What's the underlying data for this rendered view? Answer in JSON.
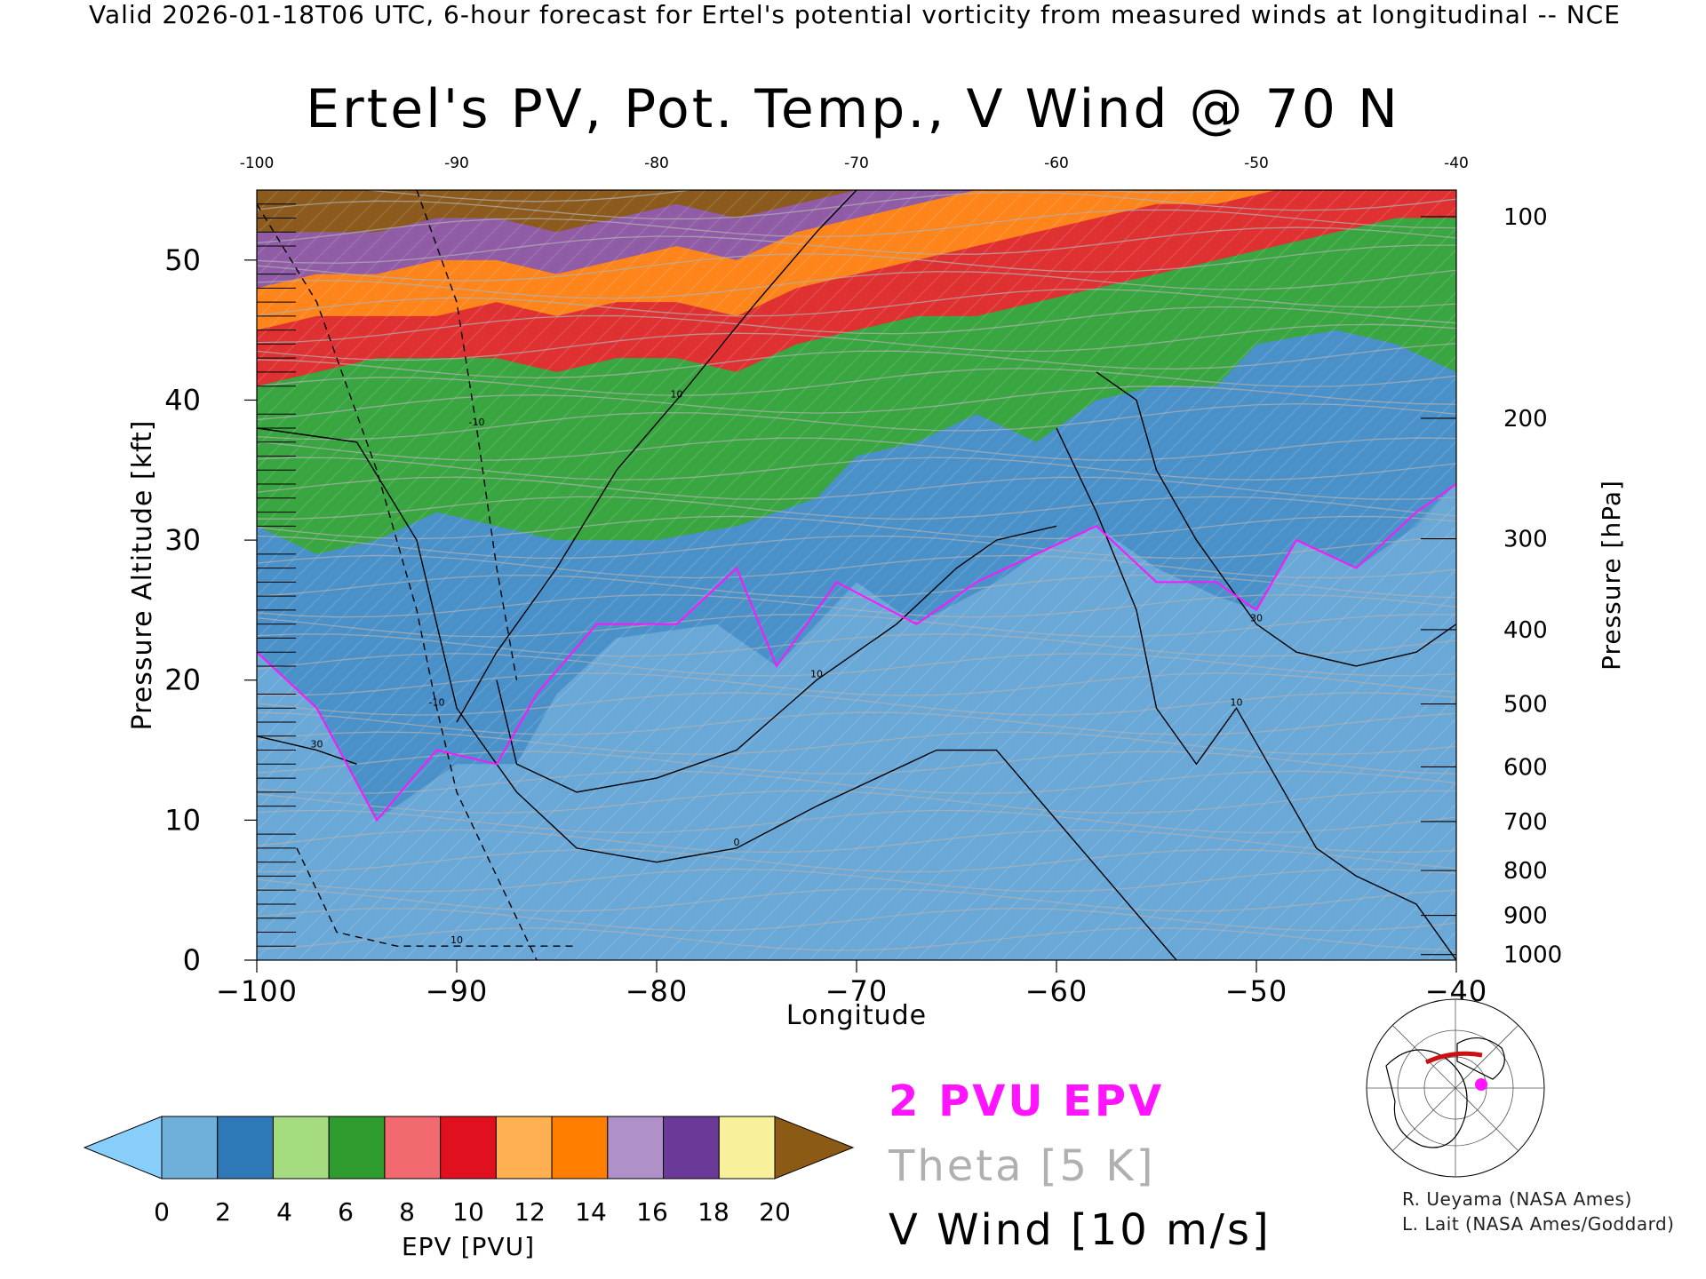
{
  "header": "Valid 2026-01-18T06 UTC, 6-hour forecast for Ertel's potential vorticity from measured winds at longitudinal -- NCE",
  "chart_data": {
    "type": "heatmap",
    "title": "Ertel's PV, Pot. Temp., V Wind @ 70 N",
    "xlabel": "Longitude",
    "ylabel": "Pressure Altitude [kft]",
    "y2label": "Pressure [hPa]",
    "xlim": [
      -100,
      -40
    ],
    "ylim": [
      0,
      55
    ],
    "x_ticks": [
      -100,
      -90,
      -80,
      -70,
      -60,
      -50,
      -40
    ],
    "x_tick_labels": [
      "−100",
      "−90",
      "−80",
      "−70",
      "−60",
      "−50",
      "−40"
    ],
    "top_x_tick_labels": [
      "-100",
      "-90",
      "-80",
      "-70",
      "-60",
      "-50",
      "-40"
    ],
    "y_ticks": [
      0,
      10,
      20,
      30,
      40,
      50
    ],
    "y_tick_labels": [
      "0",
      "10",
      "20",
      "30",
      "40",
      "50"
    ],
    "pressure_ticks": [
      {
        "label": "100",
        "kft": 53.1
      },
      {
        "label": "200",
        "kft": 38.7
      },
      {
        "label": "300",
        "kft": 30.1
      },
      {
        "label": "400",
        "kft": 23.6
      },
      {
        "label": "500",
        "kft": 18.3
      },
      {
        "label": "600",
        "kft": 13.8
      },
      {
        "label": "700",
        "kft": 9.9
      },
      {
        "label": "800",
        "kft": 6.4
      },
      {
        "label": "900",
        "kft": 3.2
      },
      {
        "label": "1000",
        "kft": 0.4
      }
    ],
    "colorbar": {
      "label": "EPV [PVU]",
      "ticks": [
        "0",
        "2",
        "4",
        "6",
        "8",
        "10",
        "12",
        "14",
        "16",
        "18",
        "20"
      ],
      "under_color": "#87cefa",
      "over_color": "#8b5a14",
      "colors": [
        "#6fb0da",
        "#2f78b8",
        "#a6dc80",
        "#2e9c2e",
        "#f26a70",
        "#e0101e",
        "#ffb050",
        "#ff7e00",
        "#b090c8",
        "#6a3a98",
        "#f8f09a"
      ]
    },
    "epv_bands": [
      {
        "name": "0-4 PVU",
        "color": "#4a8fc8",
        "boundary": [
          [
            -100,
            22
          ],
          [
            -97,
            18
          ],
          [
            -94,
            10
          ],
          [
            -90,
            14
          ],
          [
            -87,
            14
          ],
          [
            -85,
            19
          ],
          [
            -82,
            23
          ],
          [
            -77,
            24
          ],
          [
            -74,
            21
          ],
          [
            -70,
            27
          ],
          [
            -67,
            24
          ],
          [
            -63,
            27
          ],
          [
            -61,
            29
          ],
          [
            -58,
            31
          ],
          [
            -55,
            28
          ],
          [
            -52,
            26
          ],
          [
            -50,
            25
          ],
          [
            -48,
            30
          ],
          [
            -45,
            28
          ],
          [
            -42,
            31
          ],
          [
            -40,
            34
          ]
        ]
      },
      {
        "name": "4-8 PVU",
        "color": "#38a83a",
        "boundary": [
          [
            -100,
            31
          ],
          [
            -97,
            29
          ],
          [
            -94,
            30
          ],
          [
            -91,
            32
          ],
          [
            -88,
            31
          ],
          [
            -85,
            30
          ],
          [
            -80,
            30
          ],
          [
            -76,
            31
          ],
          [
            -72,
            33
          ],
          [
            -70,
            36
          ],
          [
            -67,
            37
          ],
          [
            -64,
            39
          ],
          [
            -61,
            37
          ],
          [
            -58,
            40
          ],
          [
            -55,
            41
          ],
          [
            -52,
            41
          ],
          [
            -50,
            44
          ],
          [
            -46,
            45
          ],
          [
            -43,
            44
          ],
          [
            -40,
            42
          ]
        ]
      },
      {
        "name": "8-12 PVU",
        "color": "#e82a32",
        "boundary": [
          [
            -100,
            41
          ],
          [
            -97,
            42
          ],
          [
            -94,
            43
          ],
          [
            -91,
            43
          ],
          [
            -88,
            43
          ],
          [
            -85,
            42
          ],
          [
            -82,
            43
          ],
          [
            -79,
            43
          ],
          [
            -76,
            42
          ],
          [
            -73,
            44
          ],
          [
            -70,
            45
          ],
          [
            -67,
            46
          ],
          [
            -64,
            46
          ],
          [
            -61,
            47
          ],
          [
            -58,
            48
          ],
          [
            -55,
            49
          ],
          [
            -52,
            50
          ],
          [
            -49,
            51
          ],
          [
            -46,
            52
          ],
          [
            -43,
            53
          ],
          [
            -40,
            53
          ]
        ]
      },
      {
        "name": "12-14 PVU",
        "color": "#ff8a1a",
        "boundary": [
          [
            -100,
            45
          ],
          [
            -97,
            46
          ],
          [
            -94,
            46
          ],
          [
            -91,
            46
          ],
          [
            -88,
            47
          ],
          [
            -85,
            46
          ],
          [
            -82,
            47
          ],
          [
            -79,
            47
          ],
          [
            -76,
            46
          ],
          [
            -73,
            48
          ],
          [
            -70,
            49
          ],
          [
            -67,
            50
          ],
          [
            -64,
            51
          ],
          [
            -61,
            52
          ],
          [
            -58,
            53
          ],
          [
            -55,
            54
          ],
          [
            -52,
            54
          ],
          [
            -49,
            55
          ],
          [
            -46,
            55
          ],
          [
            -43,
            55
          ],
          [
            -40,
            55
          ]
        ]
      },
      {
        "name": "14-18 PVU",
        "color": "#8a5aae",
        "boundary": [
          [
            -100,
            48
          ],
          [
            -97,
            49
          ],
          [
            -94,
            49
          ],
          [
            -91,
            50
          ],
          [
            -88,
            50
          ],
          [
            -85,
            49
          ],
          [
            -82,
            50
          ],
          [
            -79,
            51
          ],
          [
            -76,
            50
          ],
          [
            -73,
            52
          ],
          [
            -70,
            53
          ],
          [
            -67,
            54
          ],
          [
            -64,
            55
          ],
          [
            -61,
            55
          ],
          [
            -58,
            55
          ],
          [
            -55,
            55
          ],
          [
            -52,
            55
          ],
          [
            -49,
            55
          ],
          [
            -46,
            55
          ],
          [
            -43,
            55
          ],
          [
            -40,
            55
          ]
        ]
      },
      {
        "name": "> 20 PVU",
        "color": "#8b5a14",
        "boundary": [
          [
            -100,
            52
          ],
          [
            -97,
            52
          ],
          [
            -94,
            52
          ],
          [
            -91,
            53
          ],
          [
            -88,
            53
          ],
          [
            -85,
            52
          ],
          [
            -82,
            53
          ],
          [
            -79,
            54
          ],
          [
            -76,
            53
          ],
          [
            -73,
            54
          ],
          [
            -70,
            55
          ],
          [
            -67,
            55
          ],
          [
            -64,
            55
          ],
          [
            -61,
            55
          ],
          [
            -58,
            55
          ],
          [
            -55,
            55
          ],
          [
            -52,
            55
          ],
          [
            -49,
            55
          ],
          [
            -46,
            55
          ],
          [
            -43,
            55
          ],
          [
            -40,
            55
          ]
        ]
      }
    ],
    "vwind_contours": [
      {
        "label": "0",
        "style": "solid",
        "points": [
          [
            -100,
            38
          ],
          [
            -95,
            37
          ],
          [
            -92,
            30
          ],
          [
            -90,
            18
          ],
          [
            -87,
            12
          ],
          [
            -84,
            8
          ],
          [
            -80,
            7
          ],
          [
            -76,
            8
          ],
          [
            -72,
            11
          ],
          [
            -66,
            15
          ],
          [
            -63,
            15
          ],
          [
            -60,
            10
          ],
          [
            -57,
            5
          ],
          [
            -54,
            0
          ]
        ]
      },
      {
        "label": "10",
        "style": "solid",
        "points": [
          [
            -90,
            17
          ],
          [
            -88,
            22
          ],
          [
            -85,
            28
          ],
          [
            -82,
            35
          ],
          [
            -79,
            40
          ],
          [
            -75,
            47
          ],
          [
            -72,
            52
          ],
          [
            -70,
            55
          ]
        ]
      },
      {
        "label": "10",
        "style": "solid",
        "points": [
          [
            -88,
            20
          ],
          [
            -87,
            14
          ],
          [
            -84,
            12
          ],
          [
            -80,
            13
          ],
          [
            -76,
            15
          ],
          [
            -72,
            20
          ],
          [
            -68,
            24
          ],
          [
            -65,
            28
          ],
          [
            -63,
            30
          ],
          [
            -60,
            31
          ]
        ]
      },
      {
        "label": "10",
        "style": "dashed",
        "points": [
          [
            -98,
            8
          ],
          [
            -96,
            2
          ],
          [
            -93,
            1
          ],
          [
            -90,
            1
          ],
          [
            -86,
            1
          ],
          [
            -84,
            1
          ]
        ]
      },
      {
        "label": "-10",
        "style": "dashed",
        "points": [
          [
            -100,
            54
          ],
          [
            -97,
            47
          ],
          [
            -94,
            35
          ],
          [
            -92,
            25
          ],
          [
            -91,
            18
          ],
          [
            -90,
            12
          ],
          [
            -88,
            6
          ],
          [
            -86,
            0
          ]
        ]
      },
      {
        "label": "-10",
        "style": "dashed",
        "points": [
          [
            -92,
            55
          ],
          [
            -90,
            47
          ],
          [
            -89,
            38
          ],
          [
            -88,
            28
          ],
          [
            -87,
            20
          ]
        ]
      },
      {
        "label": "30",
        "style": "solid",
        "points": [
          [
            -100,
            16
          ],
          [
            -97,
            15
          ],
          [
            -95,
            14
          ]
        ]
      },
      {
        "label": "30",
        "style": "solid",
        "points": [
          [
            -58,
            42
          ],
          [
            -56,
            40
          ],
          [
            -55,
            35
          ],
          [
            -53,
            30
          ],
          [
            -50,
            24
          ],
          [
            -48,
            22
          ],
          [
            -45,
            21
          ],
          [
            -42,
            22
          ],
          [
            -40,
            24
          ]
        ]
      },
      {
        "label": "10",
        "style": "solid",
        "points": [
          [
            -60,
            38
          ],
          [
            -58,
            32
          ],
          [
            -56,
            25
          ],
          [
            -55,
            18
          ],
          [
            -53,
            14
          ],
          [
            -51,
            18
          ],
          [
            -49,
            13
          ],
          [
            -47,
            8
          ],
          [
            -45,
            6
          ],
          [
            -42,
            4
          ],
          [
            -40,
            0
          ]
        ]
      }
    ],
    "epv_2pvu_line": {
      "color": "#ff14ff",
      "points": [
        [
          -100,
          22
        ],
        [
          -97,
          18
        ],
        [
          -94,
          10
        ],
        [
          -91,
          15
        ],
        [
          -88,
          14
        ],
        [
          -86,
          19
        ],
        [
          -83,
          24
        ],
        [
          -79,
          24
        ],
        [
          -76,
          28
        ],
        [
          -74,
          21
        ],
        [
          -71,
          27
        ],
        [
          -67,
          24
        ],
        [
          -64,
          27
        ],
        [
          -61,
          29
        ],
        [
          -58,
          31
        ],
        [
          -55,
          27
        ],
        [
          -52,
          27
        ],
        [
          -50,
          25
        ],
        [
          -48,
          30
        ],
        [
          -45,
          28
        ],
        [
          -42,
          32
        ],
        [
          -40,
          34
        ]
      ]
    }
  },
  "legend": {
    "pv_label": "2 PVU EPV",
    "theta_label": "Theta [5 K]",
    "vwind_label": "V Wind [10 m/s]"
  },
  "credits": {
    "line1": "R. Ueyama (NASA Ames)",
    "line2": "L. Lait (NASA Ames/Goddard)"
  },
  "colors": {
    "pv_line": "#ff14ff",
    "theta": "#b0b0b0",
    "wind": "#000000"
  },
  "map": {
    "icon": "arctic-locator-map-icon",
    "track_color": "#cc1010",
    "marker_color": "#ff14ff"
  }
}
